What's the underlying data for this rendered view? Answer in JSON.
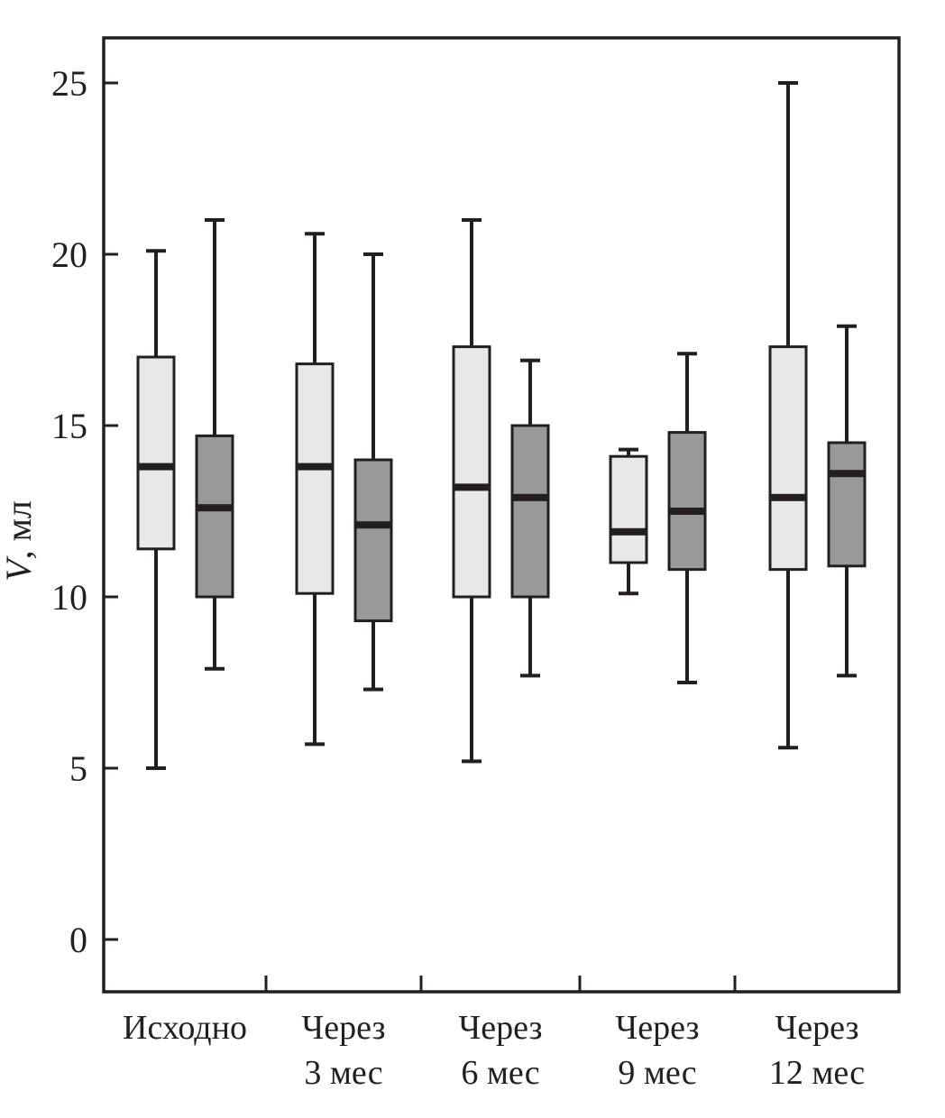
{
  "figure": {
    "background": "#ffffff"
  },
  "chart_data": {
    "type": "boxplot",
    "title": "",
    "ylabel": "V, мл",
    "ylim": [
      0,
      26.3
    ],
    "yticks": [
      0,
      5,
      10,
      15,
      20,
      25
    ],
    "grid": false,
    "legend": "none",
    "categories": [
      [
        "Исходно"
      ],
      [
        "Через",
        "3 мес"
      ],
      [
        "Через",
        "6 мес"
      ],
      [
        "Через",
        "9 мес"
      ],
      [
        "Через",
        "12 мес"
      ]
    ],
    "colors": {
      "line": "#231f20",
      "series": [
        "#e8e8e8",
        "#999999"
      ]
    },
    "series": [
      {
        "name": "light-gray-boxes",
        "fill": "#e8e8e8",
        "boxes": [
          {
            "low": 5.0,
            "q1": 11.4,
            "median": 13.8,
            "q3": 17.0,
            "high": 20.1
          },
          {
            "low": 5.7,
            "q1": 10.1,
            "median": 13.8,
            "q3": 16.8,
            "high": 20.6
          },
          {
            "low": 5.2,
            "q1": 10.0,
            "median": 13.2,
            "q3": 17.3,
            "high": 21.0
          },
          {
            "low": 10.1,
            "q1": 11.0,
            "median": 11.9,
            "q3": 14.1,
            "high": 14.3
          },
          {
            "low": 5.6,
            "q1": 10.8,
            "median": 12.9,
            "q3": 17.3,
            "high": 25.0
          }
        ]
      },
      {
        "name": "dark-gray-boxes",
        "fill": "#999999",
        "boxes": [
          {
            "low": 7.9,
            "q1": 10.0,
            "median": 12.6,
            "q3": 14.7,
            "high": 21.0
          },
          {
            "low": 7.3,
            "q1": 9.3,
            "median": 12.1,
            "q3": 14.0,
            "high": 20.0
          },
          {
            "low": 7.7,
            "q1": 10.0,
            "median": 12.9,
            "q3": 15.0,
            "high": 16.9
          },
          {
            "low": 7.5,
            "q1": 10.8,
            "median": 12.5,
            "q3": 14.8,
            "high": 17.1
          },
          {
            "low": 7.7,
            "q1": 10.9,
            "median": 13.6,
            "q3": 14.5,
            "high": 17.9
          }
        ]
      }
    ]
  }
}
